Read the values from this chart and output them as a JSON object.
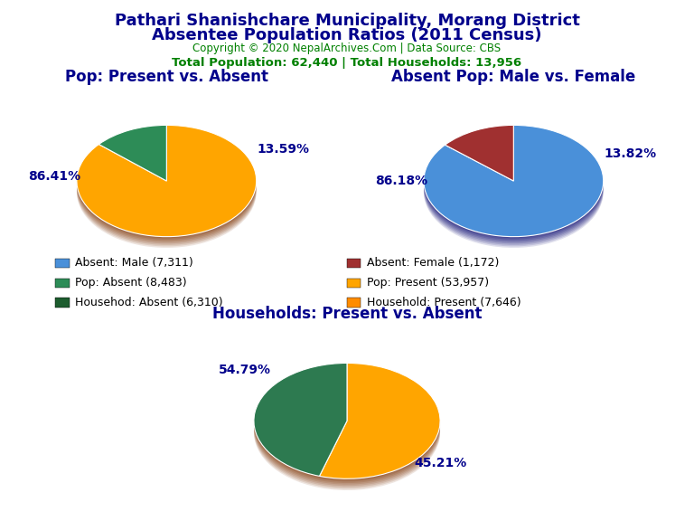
{
  "title_line1": "Pathari Shanishchare Municipality, Morang District",
  "title_line2": "Absentee Population Ratios (2011 Census)",
  "copyright": "Copyright © 2020 NepalArchives.Com | Data Source: CBS",
  "stats": "Total Population: 62,440 | Total Households: 13,956",
  "title_color": "#00008B",
  "copyright_color": "#008000",
  "stats_color": "#008000",
  "pie1_title": "Pop: Present vs. Absent",
  "pie1_values": [
    53957,
    8483
  ],
  "pie1_colors": [
    "#FFA500",
    "#2D8C57"
  ],
  "pie1_shadow_color": "#7B3000",
  "pie1_labels": [
    "86.41%",
    "13.59%"
  ],
  "pie1_startangle": 90,
  "pie2_title": "Absent Pop: Male vs. Female",
  "pie2_values": [
    7311,
    1172
  ],
  "pie2_colors": [
    "#4A90D9",
    "#A03030"
  ],
  "pie2_shadow_color": "#00006B",
  "pie2_labels": [
    "86.18%",
    "13.82%"
  ],
  "pie2_startangle": 90,
  "pie3_title": "Households: Present vs. Absent",
  "pie3_values": [
    7646,
    6310
  ],
  "pie3_colors": [
    "#FFA500",
    "#2D7A50"
  ],
  "pie3_shadow_color": "#7B3000",
  "pie3_labels": [
    "54.79%",
    "45.21%"
  ],
  "pie3_startangle": 90,
  "legend_items": [
    {
      "label": "Absent: Male (7,311)",
      "color": "#4A90D9"
    },
    {
      "label": "Absent: Female (1,172)",
      "color": "#A03030"
    },
    {
      "label": "Pop: Absent (8,483)",
      "color": "#2D8C57"
    },
    {
      "label": "Pop: Present (53,957)",
      "color": "#FFA500"
    },
    {
      "label": "Househod: Absent (6,310)",
      "color": "#1C5C2E"
    },
    {
      "label": "Household: Present (7,646)",
      "color": "#FF8C00"
    }
  ],
  "label_color": "#00008B",
  "label_fontsize": 10,
  "subtitle_title_fontsize": 12
}
